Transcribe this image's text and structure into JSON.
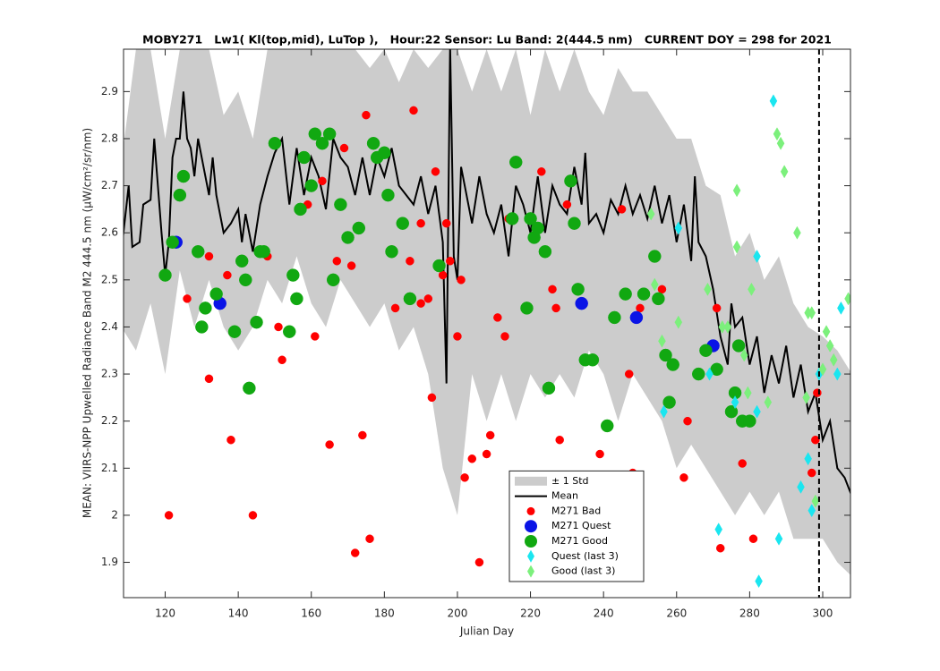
{
  "chart_data": {
    "type": "scatter",
    "title": "MOBY271   Lw1( Kl(top,mid), LuTop ),   Hour:22 Sensor: Lu Band: 2(444.5 nm)   CURRENT DOY = 298 for 2021",
    "xlabel": "Julian Day",
    "ylabel": "MEAN: VIIRS-NPP Upwelled Radiance Band M2 444.5 nm (µW/cm²/sr/nm)",
    "xlim": [
      108.6,
      307.6
    ],
    "ylim": [
      1.825,
      2.99
    ],
    "xticks": [
      120,
      140,
      160,
      180,
      200,
      220,
      240,
      260,
      280,
      300
    ],
    "yticks": [
      1.9,
      2,
      2.1,
      2.2,
      2.3,
      2.4,
      2.5,
      2.6,
      2.7,
      2.8,
      2.9
    ],
    "legend": "south",
    "vline": 299,
    "band": {
      "name": "± 1 Std",
      "color": "#cccccc",
      "x": [
        108,
        112,
        116,
        120,
        124,
        128,
        132,
        136,
        140,
        144,
        148,
        152,
        156,
        160,
        164,
        168,
        172,
        176,
        180,
        184,
        188,
        192,
        196,
        200,
        204,
        208,
        212,
        216,
        220,
        224,
        228,
        232,
        236,
        240,
        244,
        248,
        252,
        256,
        260,
        264,
        268,
        272,
        276,
        280,
        284,
        288,
        292,
        296,
        300,
        304,
        308
      ],
      "upper": [
        2.75,
        2.99,
        2.99,
        2.8,
        2.99,
        2.99,
        2.99,
        2.85,
        2.9,
        2.8,
        2.99,
        2.99,
        2.99,
        2.99,
        2.99,
        2.99,
        2.99,
        2.95,
        2.99,
        2.92,
        2.99,
        2.95,
        2.99,
        2.99,
        2.9,
        2.99,
        2.9,
        2.99,
        2.85,
        2.99,
        2.9,
        2.99,
        2.9,
        2.85,
        2.95,
        2.9,
        2.9,
        2.85,
        2.8,
        2.8,
        2.7,
        2.68,
        2.55,
        2.6,
        2.5,
        2.55,
        2.45,
        2.4,
        2.38,
        2.35,
        2.3
      ],
      "lower": [
        2.4,
        2.35,
        2.45,
        2.3,
        2.52,
        2.4,
        2.5,
        2.4,
        2.35,
        2.4,
        2.5,
        2.45,
        2.55,
        2.45,
        2.4,
        2.5,
        2.45,
        2.4,
        2.45,
        2.35,
        2.4,
        2.3,
        2.1,
        2.0,
        2.3,
        2.2,
        2.3,
        2.2,
        2.3,
        2.25,
        2.3,
        2.25,
        2.35,
        2.3,
        2.2,
        2.3,
        2.25,
        2.2,
        2.1,
        2.15,
        2.1,
        2.05,
        2.0,
        2.05,
        2.0,
        2.05,
        1.95,
        1.95,
        1.95,
        1.9,
        1.87
      ]
    },
    "mean": {
      "name": "Mean",
      "color": "#000000",
      "x": [
        108,
        110,
        111,
        113,
        114,
        116,
        117,
        118,
        119,
        120,
        121,
        122,
        123,
        124,
        125,
        126,
        127,
        128,
        129,
        130,
        131,
        132,
        133,
        134,
        136,
        138,
        140,
        141,
        142,
        144,
        146,
        148,
        150,
        152,
        154,
        156,
        158,
        160,
        162,
        164,
        166,
        168,
        170,
        172,
        174,
        176,
        178,
        180,
        182,
        184,
        186,
        188,
        190,
        192,
        194,
        196,
        197,
        198,
        199,
        200,
        201,
        202,
        204,
        206,
        208,
        210,
        212,
        214,
        216,
        218,
        220,
        222,
        224,
        226,
        228,
        230,
        232,
        234,
        235,
        236,
        238,
        240,
        242,
        244,
        246,
        248,
        250,
        252,
        254,
        256,
        258,
        260,
        262,
        264,
        265,
        266,
        268,
        270,
        272,
        274,
        275,
        276,
        278,
        280,
        282,
        284,
        286,
        288,
        290,
        292,
        294,
        296,
        298,
        300,
        302,
        304,
        306,
        308
      ],
      "values": [
        2.56,
        2.7,
        2.57,
        2.58,
        2.66,
        2.67,
        2.8,
        2.7,
        2.6,
        2.51,
        2.58,
        2.76,
        2.8,
        2.8,
        2.9,
        2.8,
        2.78,
        2.72,
        2.8,
        2.76,
        2.72,
        2.68,
        2.76,
        2.68,
        2.6,
        2.62,
        2.65,
        2.58,
        2.64,
        2.56,
        2.66,
        2.72,
        2.77,
        2.8,
        2.66,
        2.78,
        2.68,
        2.76,
        2.72,
        2.65,
        2.8,
        2.76,
        2.74,
        2.68,
        2.76,
        2.68,
        2.76,
        2.72,
        2.78,
        2.7,
        2.68,
        2.66,
        2.72,
        2.64,
        2.7,
        2.58,
        2.28,
        3.0,
        2.55,
        2.5,
        2.74,
        2.7,
        2.62,
        2.72,
        2.64,
        2.6,
        2.66,
        2.55,
        2.7,
        2.66,
        2.6,
        2.72,
        2.6,
        2.7,
        2.66,
        2.64,
        2.74,
        2.66,
        2.77,
        2.62,
        2.64,
        2.6,
        2.67,
        2.64,
        2.7,
        2.64,
        2.68,
        2.63,
        2.7,
        2.62,
        2.68,
        2.58,
        2.66,
        2.54,
        2.72,
        2.58,
        2.55,
        2.48,
        2.38,
        2.32,
        2.45,
        2.4,
        2.42,
        2.32,
        2.38,
        2.26,
        2.34,
        2.28,
        2.36,
        2.25,
        2.32,
        2.22,
        2.26,
        2.16,
        2.2,
        2.1,
        2.08,
        2.04
      ]
    },
    "series": [
      {
        "name": "M271 Bad",
        "color": "#ff0000",
        "marker": "o",
        "size": 4.5,
        "x": [
          121,
          126,
          132,
          132,
          137,
          138,
          144,
          148,
          151,
          152,
          161,
          163,
          159,
          165,
          167,
          169,
          171,
          172,
          174,
          175,
          176,
          183,
          187,
          188,
          190,
          190,
          192,
          193,
          194,
          196,
          197,
          198,
          200,
          201,
          202,
          204,
          206,
          208,
          209,
          211,
          213,
          214,
          223,
          226,
          227,
          228,
          230,
          239,
          245,
          247,
          248,
          250,
          256,
          262,
          263,
          271,
          272,
          278,
          281,
          297,
          298,
          298.5
        ],
        "values": [
          2.0,
          2.46,
          2.55,
          2.29,
          2.51,
          2.16,
          2.0,
          2.55,
          2.4,
          2.33,
          2.38,
          2.71,
          2.66,
          2.15,
          2.54,
          2.78,
          2.53,
          1.92,
          2.17,
          2.85,
          1.95,
          2.44,
          2.54,
          2.86,
          2.45,
          2.62,
          2.46,
          2.25,
          2.73,
          2.51,
          2.62,
          2.54,
          2.38,
          2.5,
          2.08,
          2.12,
          1.9,
          2.13,
          2.17,
          2.42,
          2.38,
          2.63,
          2.73,
          2.48,
          2.44,
          2.16,
          2.66,
          2.13,
          2.65,
          2.3,
          2.09,
          2.44,
          2.48,
          2.08,
          2.2,
          2.44,
          1.93,
          2.11,
          1.95,
          2.09,
          2.16,
          2.26
        ]
      },
      {
        "name": "M271 Quest",
        "color": "#0a14e6",
        "marker": "o",
        "size": 7,
        "x": [
          123,
          135,
          234,
          249,
          270
        ],
        "values": [
          2.58,
          2.45,
          2.45,
          2.42,
          2.36
        ]
      },
      {
        "name": "M271 Good",
        "color": "#11a811",
        "marker": "o",
        "size": 7,
        "x": [
          120,
          122,
          124,
          125,
          129,
          130,
          131,
          134,
          139,
          141,
          142,
          143,
          145,
          146,
          147,
          150,
          154,
          155,
          156,
          157,
          158,
          160,
          161,
          163,
          165,
          166,
          168,
          170,
          173,
          177,
          178,
          180,
          181,
          182,
          185,
          187,
          195,
          215,
          216,
          219,
          220,
          221,
          222,
          224,
          225,
          231,
          232,
          233,
          235,
          237,
          241,
          243,
          246,
          251,
          254,
          255,
          257,
          258,
          259,
          266,
          268,
          271,
          275,
          276,
          277,
          278,
          280
        ],
        "values": [
          2.51,
          2.58,
          2.68,
          2.72,
          2.56,
          2.4,
          2.44,
          2.47,
          2.39,
          2.54,
          2.5,
          2.27,
          2.41,
          2.56,
          2.56,
          2.79,
          2.39,
          2.51,
          2.46,
          2.65,
          2.76,
          2.7,
          2.81,
          2.79,
          2.81,
          2.5,
          2.66,
          2.59,
          2.61,
          2.79,
          2.76,
          2.77,
          2.68,
          2.56,
          2.62,
          2.46,
          2.53,
          2.63,
          2.75,
          2.44,
          2.63,
          2.59,
          2.61,
          2.56,
          2.27,
          2.71,
          2.62,
          2.48,
          2.33,
          2.33,
          2.19,
          2.42,
          2.47,
          2.47,
          2.55,
          2.46,
          2.34,
          2.24,
          2.32,
          2.3,
          2.35,
          2.31,
          2.22,
          2.26,
          2.36,
          2.2,
          2.2
        ]
      },
      {
        "name": "Quest (last 3)",
        "color": "#1ae6f0",
        "marker": "d",
        "size": 5,
        "x": [
          286.5,
          288,
          282,
          282,
          296,
          294,
          297,
          299,
          304,
          305,
          256.5,
          260.5,
          269,
          271.5,
          282.5,
          276
        ],
        "values": [
          2.88,
          1.95,
          2.55,
          2.22,
          2.12,
          2.06,
          2.01,
          2.3,
          2.3,
          2.44,
          2.22,
          2.61,
          2.3,
          1.97,
          1.86,
          2.24
        ]
      },
      {
        "name": "Good (last 3)",
        "color": "#7cf07c",
        "marker": "d",
        "size": 5,
        "x": [
          287.5,
          288.5,
          289.5,
          293,
          276.5,
          276.5,
          280.5,
          274,
          278.5,
          296,
          297,
          301,
          302,
          303,
          307,
          298,
          300,
          279.5,
          253,
          254,
          260.5,
          268.5,
          256,
          285,
          272.5,
          295.5
        ],
        "values": [
          2.81,
          2.79,
          2.73,
          2.6,
          2.69,
          2.57,
          2.48,
          2.4,
          2.34,
          2.43,
          2.43,
          2.39,
          2.36,
          2.33,
          2.46,
          2.03,
          2.31,
          2.26,
          2.64,
          2.49,
          2.41,
          2.48,
          2.37,
          2.24,
          2.4,
          2.25
        ]
      }
    ]
  }
}
